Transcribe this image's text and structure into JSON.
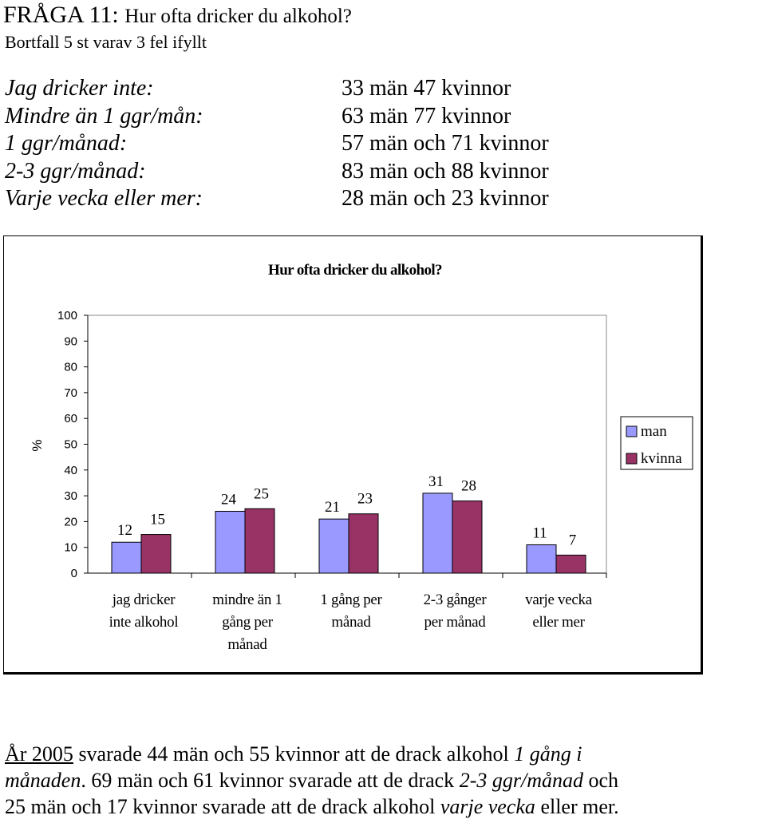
{
  "heading": {
    "fraga": "FRÅGA 11:",
    "question": "Hur ofta dricker du alkohol?",
    "subtitle": "Bortfall 5 st varav 3 fel ifyllt"
  },
  "stats": {
    "labels": [
      "Jag dricker inte:",
      "Mindre än 1 ggr/mån:",
      "1 ggr/månad:",
      "2-3 ggr/månad:",
      "Varje vecka eller mer:"
    ],
    "values": [
      "33 män 47 kvinnor",
      "63 män 77 kvinnor",
      "57 män och 71 kvinnor",
      "83 män och 88 kvinnor",
      "28 män och 23 kvinnor"
    ]
  },
  "chart_data": {
    "type": "bar",
    "title": "Hur ofta dricker du alkohol?",
    "ylabel": "%",
    "xlabel": "",
    "ylim": [
      0,
      100
    ],
    "yticks": [
      0,
      10,
      20,
      30,
      40,
      50,
      60,
      70,
      80,
      90,
      100
    ],
    "categories": [
      [
        "jag dricker",
        "inte alkohol"
      ],
      [
        "mindre än 1",
        "gång per",
        "månad"
      ],
      [
        "1 gång per",
        "månad"
      ],
      [
        "2-3 gånger",
        "per månad"
      ],
      [
        "varje vecka",
        "eller mer"
      ]
    ],
    "series": [
      {
        "name": "man",
        "color": "#9999ff",
        "values": [
          12,
          24,
          21,
          31,
          11
        ]
      },
      {
        "name": "kvinna",
        "color": "#993366",
        "values": [
          15,
          25,
          23,
          28,
          7
        ]
      }
    ],
    "grid": false,
    "legend": "right"
  },
  "footer": {
    "line1": {
      "p1": "År 2005",
      "p2": " svarade 44 män och 55 kvinnor att de drack alkohol ",
      "p3": "1 gång i"
    },
    "line2": {
      "p1": "månaden",
      "p2": ". 69 män och 61 kvinnor svarade att de drack ",
      "p3": "2-3 ggr/månad",
      "p4": " och"
    },
    "line3": {
      "p1": "25 män och 17 kvinnor svarade att de drack alkohol ",
      "p2": "varje vecka",
      "p3": " eller mer."
    }
  }
}
